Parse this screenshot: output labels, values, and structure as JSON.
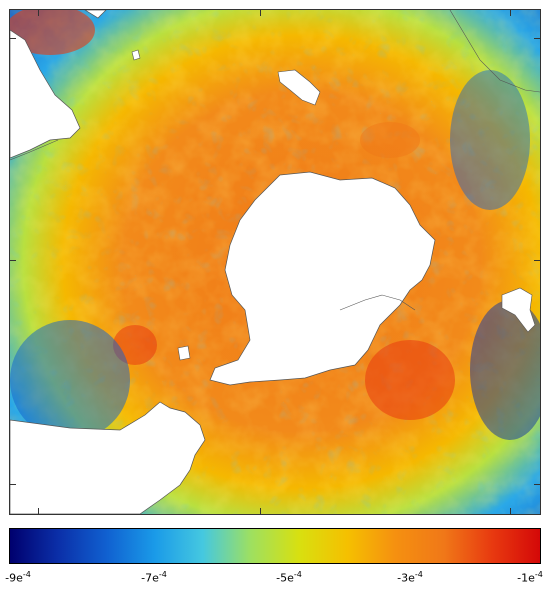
{
  "colorbar": {
    "colors": [
      "#00006e",
      "#0b2fa8",
      "#1060d0",
      "#1a9ae8",
      "#45c8e0",
      "#9ee060",
      "#d8e010",
      "#f5c000",
      "#f59010",
      "#f07818",
      "#e83a10",
      "#d40808"
    ],
    "ticks": [
      {
        "mantissa": "-9e",
        "exp": "-4"
      },
      {
        "mantissa": "-7e",
        "exp": "-4"
      },
      {
        "mantissa": "-5e",
        "exp": "-4"
      },
      {
        "mantissa": "-3e",
        "exp": "-4"
      },
      {
        "mantissa": "-1e",
        "exp": "-4"
      }
    ]
  },
  "palette": {
    "ocean_outer": "#1a9ae8",
    "ocean_mid": "#f5c000",
    "ocean_inner": "#f07818",
    "hot": "#e83a10",
    "land": "#ffffff",
    "coast": "#555555"
  }
}
